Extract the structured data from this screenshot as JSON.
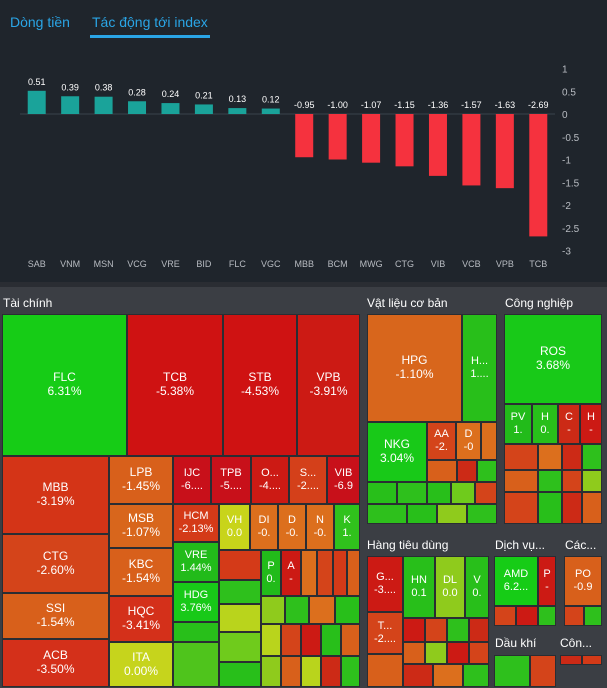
{
  "tabs": [
    {
      "label": "Dòng tiền",
      "active": false
    },
    {
      "label": "Tác động tới index",
      "active": true
    }
  ],
  "chart_data": {
    "type": "bar",
    "title": "Tác động tới index",
    "categories": [
      "SAB",
      "VNM",
      "MSN",
      "VCG",
      "VRE",
      "BID",
      "FLC",
      "VGC",
      "MBB",
      "BCM",
      "MWG",
      "CTG",
      "VIB",
      "VCB",
      "VPB",
      "TCB"
    ],
    "values": [
      0.51,
      0.39,
      0.38,
      0.28,
      0.24,
      0.21,
      0.13,
      0.12,
      -0.95,
      -1.0,
      -1.07,
      -1.15,
      -1.36,
      -1.57,
      -1.63,
      -2.69
    ],
    "value_labels": [
      "0.51",
      "0.39",
      "0.38",
      "0.28",
      "0.24",
      "0.21",
      "0.13",
      "0.12",
      "-0.95",
      "-1.00",
      "-1.07",
      "-1.15",
      "-1.36",
      "-1.57",
      "-1.63",
      "-2.69"
    ],
    "ylim": [
      -3,
      1
    ],
    "yticks": [
      1,
      0.5,
      0,
      -0.5,
      -1,
      -1.5,
      -2,
      -2.5,
      -3
    ],
    "ytick_labels": [
      "1",
      "0.5",
      "0",
      "-0.5",
      "-1",
      "-1.5",
      "-2",
      "-2.5",
      "-3"
    ],
    "positive_color": "#1aa39a",
    "negative_color": "#f5323e",
    "grid": false,
    "legend": "none"
  },
  "colors": {
    "panel": "#1f252c",
    "axis_text": "#b8bcc2",
    "tab_blue": "#2aa5e6"
  },
  "treemap": {
    "sectors": {
      "tai_chinh": "Tài chính",
      "vat_lieu": "Vật liệu cơ bản",
      "cong_nghiep": "Công nghiệp",
      "hang_tieu_dung": "Hàng tiêu dùng",
      "dich_vu": "Dịch vụ...",
      "cac": "Các...",
      "dau_khi": "Dầu khí",
      "con": "Côn..."
    },
    "tiles": [
      {
        "ticker": "FLC",
        "pct": "6.31%",
        "color": "#16cc16"
      },
      {
        "ticker": "TCB",
        "pct": "-5.38%",
        "color": "#cf1212"
      },
      {
        "ticker": "STB",
        "pct": "-4.53%",
        "color": "#cf1212"
      },
      {
        "ticker": "VPB",
        "pct": "-3.91%",
        "color": "#cc1a14"
      },
      {
        "ticker": "MBB",
        "pct": "-3.19%",
        "color": "#d43417"
      },
      {
        "ticker": "LPB",
        "pct": "-1.45%",
        "color": "#d8601b"
      },
      {
        "ticker": "IJC",
        "pct": "-6....",
        "color": "#c8101a"
      },
      {
        "ticker": "TPB",
        "pct": "-5....",
        "color": "#c8101a"
      },
      {
        "ticker": "O...",
        "pct": "-4....",
        "color": "#cc1a14"
      },
      {
        "ticker": "S...",
        "pct": "-2....",
        "color": "#d4401a"
      },
      {
        "ticker": "VIB",
        "pct": "-6.9",
        "color": "#c8101a"
      },
      {
        "ticker": "MSB",
        "pct": "-1.07%",
        "color": "#d8661c"
      },
      {
        "ticker": "HCM",
        "pct": "-2.13%",
        "color": "#d43a18"
      },
      {
        "ticker": "VH",
        "pct": "0.0",
        "color": "#c8d41a"
      },
      {
        "ticker": "DI",
        "pct": "-0.",
        "color": "#dc6f1d"
      },
      {
        "ticker": "D",
        "pct": "-0.",
        "color": "#dc6f1d"
      },
      {
        "ticker": "N",
        "pct": "-0.",
        "color": "#dc6f1d"
      },
      {
        "ticker": "K",
        "pct": "1.",
        "color": "#30c21c"
      },
      {
        "ticker": "CTG",
        "pct": "-2.60%",
        "color": "#d4441a"
      },
      {
        "ticker": "KBC",
        "pct": "-1.54%",
        "color": "#d8601b"
      },
      {
        "ticker": "VRE",
        "pct": "1.44%",
        "color": "#22bb1a"
      },
      {
        "ticker": "HDG",
        "pct": "3.76%",
        "color": "#18c918"
      },
      {
        "ticker": "SSI",
        "pct": "-1.54%",
        "color": "#d8601b"
      },
      {
        "ticker": "HQC",
        "pct": "-3.41%",
        "color": "#d4301a"
      },
      {
        "ticker": "ACB",
        "pct": "-3.50%",
        "color": "#d4301a"
      },
      {
        "ticker": "ITA",
        "pct": "0.00%",
        "color": "#c6d41c"
      },
      {
        "ticker": "P",
        "pct": "0.",
        "color": "#22bb1a"
      },
      {
        "ticker": "A",
        "pct": "-",
        "color": "#cc1a14"
      },
      {
        "ticker": "HPG",
        "pct": "-1.10%",
        "color": "#d8661c"
      },
      {
        "ticker": "H...",
        "pct": "1....",
        "color": "#28bf1a"
      },
      {
        "ticker": "NKG",
        "pct": "3.04%",
        "color": "#18c918"
      },
      {
        "ticker": "AA",
        "pct": "-2.",
        "color": "#d4441a"
      },
      {
        "ticker": "D",
        "pct": "-0",
        "color": "#dc6f1d"
      },
      {
        "ticker": "ROS",
        "pct": "3.68%",
        "color": "#18c918"
      },
      {
        "ticker": "PV",
        "pct": "1.",
        "color": "#22bb1a"
      },
      {
        "ticker": "H",
        "pct": "0.",
        "color": "#28bf1a"
      },
      {
        "ticker": "C",
        "pct": "-",
        "color": "#cc2a16"
      },
      {
        "ticker": "H",
        "pct": "-",
        "color": "#cc1a14"
      },
      {
        "ticker": "G...",
        "pct": "-3....",
        "color": "#cc1a14"
      },
      {
        "ticker": "HN",
        "pct": "0.1",
        "color": "#28bf1a"
      },
      {
        "ticker": "DL",
        "pct": "0.0",
        "color": "#8fcb1c"
      },
      {
        "ticker": "V",
        "pct": "0.",
        "color": "#28bf1a"
      },
      {
        "ticker": "T...",
        "pct": "-2....",
        "color": "#d4441a"
      },
      {
        "ticker": "AMD",
        "pct": "6.2...",
        "color": "#16cc16"
      },
      {
        "ticker": "P",
        "pct": "-",
        "color": "#cc1a14"
      },
      {
        "ticker": "PO",
        "pct": "-0.9",
        "color": "#d8601b"
      }
    ]
  }
}
